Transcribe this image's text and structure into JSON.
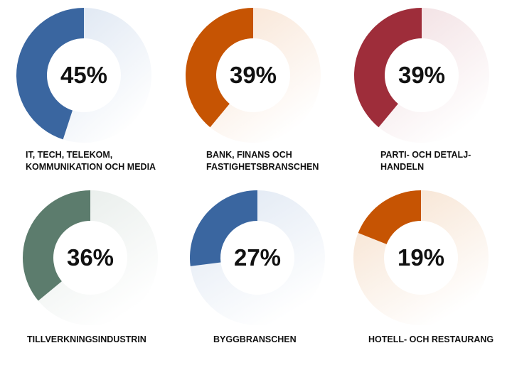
{
  "chart_data": [
    {
      "type": "pie",
      "variant": "donut",
      "value": 45,
      "value_label": "45%",
      "label_lines": [
        "IT, TECH, TELEKOM,",
        "KOMMUNIKATION OCH MEDIA"
      ],
      "color": "#3a66a0",
      "track_color": "#dde6f2"
    },
    {
      "type": "pie",
      "variant": "donut",
      "value": 39,
      "value_label": "39%",
      "label_lines": [
        "BANK, FINANS OCH",
        "FASTIGHETSBRANSCHEN"
      ],
      "color": "#c65403",
      "track_color": "#f8e3d2"
    },
    {
      "type": "pie",
      "variant": "donut",
      "value": 39,
      "value_label": "39%",
      "label_lines": [
        "PARTI- OCH DETALJ-",
        "HANDELN"
      ],
      "color": "#9e2d3a",
      "track_color": "#f1dde0"
    },
    {
      "type": "pie",
      "variant": "donut",
      "value": 36,
      "value_label": "36%",
      "label_lines": [
        "TILLVERKNINGSINDUSTRIN"
      ],
      "color": "#5c7c6d",
      "track_color": "#e5ebe8"
    },
    {
      "type": "pie",
      "variant": "donut",
      "value": 27,
      "value_label": "27%",
      "label_lines": [
        "BYGGBRANSCHEN"
      ],
      "color": "#3a66a0",
      "track_color": "#dde6f2"
    },
    {
      "type": "pie",
      "variant": "donut",
      "value": 19,
      "value_label": "19%",
      "label_lines": [
        "HOTELL- OCH RESTAURANG"
      ],
      "color": "#c65403",
      "track_color": "#f6e0cc"
    }
  ]
}
